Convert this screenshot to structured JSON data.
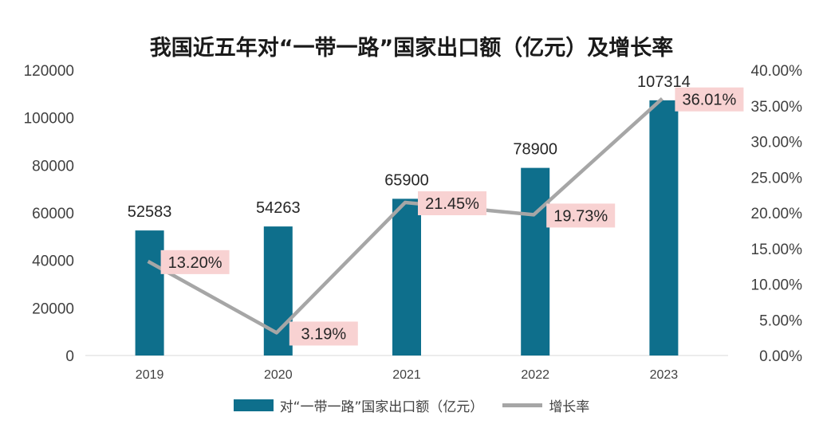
{
  "chart_data": {
    "type": "bar+line",
    "title": "我国近五年对“一带一路”国家出口额（亿元）及增长率",
    "categories": [
      "2019",
      "2020",
      "2021",
      "2022",
      "2023"
    ],
    "series": [
      {
        "name": "对“一带一路”国家出口额（亿元）",
        "type": "bar",
        "axis": "left",
        "values": [
          52583,
          54263,
          65900,
          78900,
          107314
        ],
        "labels": [
          "52583",
          "54263",
          "65900",
          "78900",
          "107314"
        ]
      },
      {
        "name": "增长率",
        "type": "line",
        "axis": "right",
        "values": [
          13.2,
          3.19,
          21.45,
          19.73,
          36.01
        ],
        "labels": [
          "13.20%",
          "3.19%",
          "21.45%",
          "19.73%",
          "36.01%"
        ]
      }
    ],
    "left_axis": {
      "min": 0,
      "max": 120000,
      "ticks": [
        "0",
        "20000",
        "40000",
        "60000",
        "80000",
        "100000",
        "120000"
      ]
    },
    "right_axis": {
      "min": 0,
      "max": 40,
      "ticks": [
        "0.00%",
        "5.00%",
        "10.00%",
        "15.00%",
        "20.00%",
        "25.00%",
        "30.00%",
        "35.00%",
        "40.00%"
      ]
    },
    "legend_position": "bottom",
    "colors": {
      "bar": "#0e6f8c",
      "line": "#a6a6a6",
      "label_bg": "#f8d2d2"
    }
  }
}
